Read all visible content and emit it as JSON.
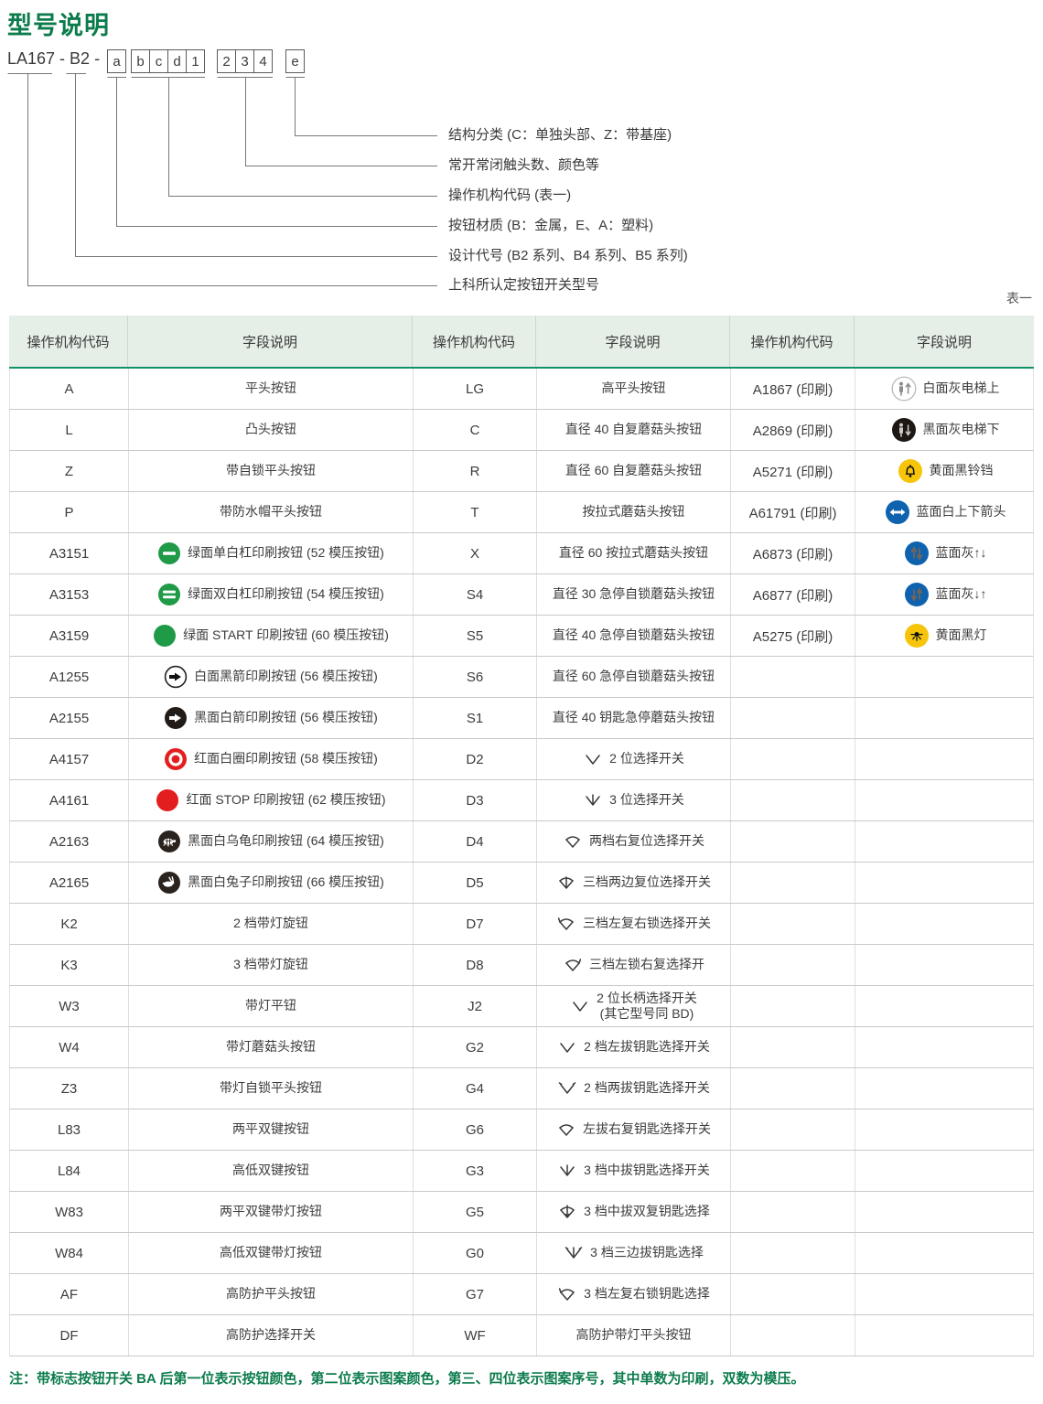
{
  "page": {
    "title": "型号说明",
    "table_tag": "表一",
    "note": "注：带标志按钮开关 BA 后第一位表示按钮颜色，第二位表示图案颜色，第三、四位表示图案序号，其中单数为印刷，双数为模压。"
  },
  "model_diagram": {
    "prefix": "LA167 - B2 -",
    "boxes": [
      "a",
      "b",
      "c",
      "d",
      "1",
      "2",
      "3",
      "4",
      "e"
    ],
    "annotations": [
      "结构分类 (C：单独头部、Z：带基座)",
      "常开常闭触头数、颜色等",
      "操作机构代码 (表一)",
      "按钮材质 (B：金属，E、A：塑料)",
      "设计代号 (B2 系列、B4 系列、B5 系列)",
      "上科所认定按钮开关型号"
    ]
  },
  "table": {
    "headers": [
      "操作机构代码",
      "字段说明",
      "操作机构代码",
      "字段说明",
      "操作机构代码",
      "字段说明"
    ],
    "rows": [
      {
        "c1": "A",
        "i1": "",
        "d1": "平头按钮",
        "c2": "LG",
        "i2": "",
        "d2": "高平头按钮",
        "c3": "A1867 (印刷)",
        "i3": "elevator-up-icon",
        "d3": "白面灰电梯上"
      },
      {
        "c1": "L",
        "i1": "",
        "d1": "凸头按钮",
        "c2": "C",
        "i2": "",
        "d2": "直径 40 自复蘑菇头按钮",
        "c3": "A2869 (印刷)",
        "i3": "elevator-down-icon",
        "d3": "黑面灰电梯下"
      },
      {
        "c1": "Z",
        "i1": "",
        "d1": "带自锁平头按钮",
        "c2": "R",
        "i2": "",
        "d2": "直径 60 自复蘑菇头按钮",
        "c3": "A5271 (印刷)",
        "i3": "bell-icon",
        "d3": "黄面黑铃铛"
      },
      {
        "c1": "P",
        "i1": "",
        "d1": "带防水帽平头按钮",
        "c2": "T",
        "i2": "",
        "d2": "按拉式蘑菇头按钮",
        "c3": "A61791 (印刷)",
        "i3": "arrows-leftright-icon",
        "d3": "蓝面白上下箭头"
      },
      {
        "c1": "A3151",
        "i1": "green-single-bar-icon",
        "d1": "绿面单白杠印刷按钮 (52 模压按钮)",
        "c2": "X",
        "i2": "",
        "d2": "直径 60 按拉式蘑菇头按钮",
        "c3": "A6873 (印刷)",
        "i3": "arrows-updown-icon",
        "d3": "蓝面灰↑↓"
      },
      {
        "c1": "A3153",
        "i1": "green-double-bar-icon",
        "d1": "绿面双白杠印刷按钮 (54 模压按钮)",
        "c2": "S4",
        "i2": "",
        "d2": "直径 30 急停自锁蘑菇头按钮",
        "c3": "A6877 (印刷)",
        "i3": "arrows-downup-icon",
        "d3": "蓝面灰↓↑"
      },
      {
        "c1": "A3159",
        "i1": "green-solid-icon",
        "d1": "绿面 START 印刷按钮 (60 模压按钮)",
        "c2": "S5",
        "i2": "",
        "d2": "直径 40 急停自锁蘑菇头按钮",
        "c3": "A5275 (印刷)",
        "i3": "lamp-icon",
        "d3": "黄面黑灯"
      },
      {
        "c1": "A1255",
        "i1": "white-black-arrow-icon",
        "d1": "白面黑箭印刷按钮 (56 模压按钮)",
        "c2": "S6",
        "i2": "",
        "d2": "直径 60 急停自锁蘑菇头按钮",
        "c3": "",
        "i3": "",
        "d3": ""
      },
      {
        "c1": "A2155",
        "i1": "black-white-arrow-icon",
        "d1": "黑面白箭印刷按钮 (56 模压按钮)",
        "c2": "S1",
        "i2": "",
        "d2": "直径 40 钥匙急停蘑菇头按钮",
        "c3": "",
        "i3": "",
        "d3": ""
      },
      {
        "c1": "A4157",
        "i1": "red-ring-icon",
        "d1": "红面白圈印刷按钮 (58 模压按钮)",
        "c2": "D2",
        "i2": "selector-2pos-icon",
        "d2": "2 位选择开关",
        "c3": "",
        "i3": "",
        "d3": ""
      },
      {
        "c1": "A4161",
        "i1": "red-solid-icon",
        "d1": "红面 STOP 印刷按钮 (62 模压按钮)",
        "c2": "D3",
        "i2": "selector-3pos-icon",
        "d2": "3 位选择开关",
        "c3": "",
        "i3": "",
        "d3": ""
      },
      {
        "c1": "A2163",
        "i1": "black-turtle-icon",
        "d1": "黑面白乌龟印刷按钮 (64 模压按钮)",
        "c2": "D4",
        "i2": "selector-fan-icon",
        "d2": "两档右复位选择开关",
        "c3": "",
        "i3": "",
        "d3": ""
      },
      {
        "c1": "A2165",
        "i1": "black-rabbit-icon",
        "d1": "黑面白兔子印刷按钮 (66 模压按钮)",
        "c2": "D5",
        "i2": "selector-fan-mid-icon",
        "d2": "三档两边复位选择开关",
        "c3": "",
        "i3": "",
        "d3": ""
      },
      {
        "c1": "K2",
        "i1": "",
        "d1": "2 档带灯旋钮",
        "c2": "D7",
        "i2": "selector-fan-left-icon",
        "d2": "三档左复右锁选择开关",
        "c3": "",
        "i3": "",
        "d3": ""
      },
      {
        "c1": "K3",
        "i1": "",
        "d1": "3 档带灯旋钮",
        "c2": "D8",
        "i2": "selector-fan-right-icon",
        "d2": "三档左锁右复选择开",
        "c3": "",
        "i3": "",
        "d3": ""
      },
      {
        "c1": "W3",
        "i1": "",
        "d1": "带灯平钮",
        "c2": "J2",
        "i2": "selector-2pos-icon",
        "d2": "2 位长柄选择开关\n(其它型号同 BD)",
        "c3": "",
        "i3": "",
        "d3": ""
      },
      {
        "c1": "W4",
        "i1": "",
        "d1": "带灯蘑菇头按钮",
        "c2": "G2",
        "i2": "selector-2pos-icon",
        "d2": "2 档左拔钥匙选择开关",
        "c3": "",
        "i3": "",
        "d3": ""
      },
      {
        "c1": "Z3",
        "i1": "",
        "d1": "带灯自锁平头按钮",
        "c2": "G4",
        "i2": "selector-2pos-key-icon",
        "d2": "2 档两拔钥匙选择开关",
        "c3": "",
        "i3": "",
        "d3": ""
      },
      {
        "c1": "L83",
        "i1": "",
        "d1": "两平双键按钮",
        "c2": "G6",
        "i2": "selector-fan-icon",
        "d2": "左拔右复钥匙选择开关",
        "c3": "",
        "i3": "",
        "d3": ""
      },
      {
        "c1": "L84",
        "i1": "",
        "d1": "高低双键按钮",
        "c2": "G3",
        "i2": "selector-3pos-icon",
        "d2": "3 档中拔钥匙选择开关",
        "c3": "",
        "i3": "",
        "d3": ""
      },
      {
        "c1": "W83",
        "i1": "",
        "d1": "两平双键带灯按钮",
        "c2": "G5",
        "i2": "selector-fan-arrow-icon",
        "d2": "3 档中拔双复钥匙选择",
        "c3": "",
        "i3": "",
        "d3": ""
      },
      {
        "c1": "W84",
        "i1": "",
        "d1": "高低双键带灯按钮",
        "c2": "G0",
        "i2": "selector-3pos-ticks-icon",
        "d2": "3 档三边拔钥匙选择",
        "c3": "",
        "i3": "",
        "d3": ""
      },
      {
        "c1": "AF",
        "i1": "",
        "d1": "高防护平头按钮",
        "c2": "G7",
        "i2": "selector-fan-left-icon",
        "d2": "3 档左复右锁钥匙选择",
        "c3": "",
        "i3": "",
        "d3": ""
      },
      {
        "c1": "DF",
        "i1": "",
        "d1": "高防护选择开关",
        "c2": "WF",
        "i2": "",
        "d2": "高防护带灯平头按钮",
        "c3": "",
        "i3": "",
        "d3": ""
      }
    ]
  },
  "colors": {
    "accent_green": "#0c7c4c",
    "header_bg": "#e5eee7",
    "header_rule": "#12916b",
    "button_green": "#1f9a47",
    "button_red": "#e21e1e",
    "button_blue": "#0f62ad",
    "button_yellow": "#f6c50a",
    "button_black": "#221c18"
  }
}
